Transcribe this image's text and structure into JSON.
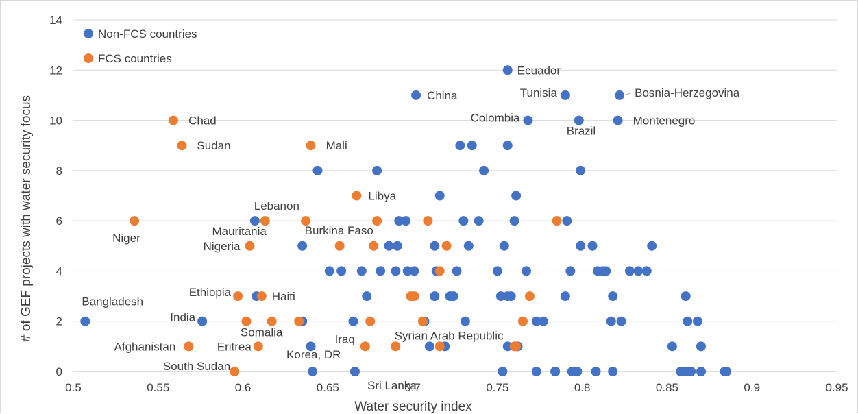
{
  "chart_data": {
    "type": "scatter",
    "xlabel": "Water security index",
    "ylabel": "# of GEF projects with water security focus",
    "xlim": [
      0.5,
      0.95
    ],
    "ylim": [
      0,
      14
    ],
    "x_ticks": [
      "0.5",
      "0.55",
      "0.6",
      "0.65",
      "0.7",
      "0.75",
      "0.8",
      "0.85",
      "0.9",
      "0.95"
    ],
    "y_ticks": [
      "0",
      "2",
      "4",
      "6",
      "8",
      "10",
      "12",
      "14"
    ],
    "grid": "horizontal",
    "legend_position": "top-left",
    "series": [
      {
        "name": "Non-FCS countries",
        "color": "#4472C4",
        "points": [
          [
            0.507,
            2
          ],
          [
            0.576,
            2
          ],
          [
            0.607,
            6
          ],
          [
            0.608,
            3
          ],
          [
            0.635,
            2
          ],
          [
            0.635,
            5
          ],
          [
            0.64,
            1
          ],
          [
            0.641,
            0
          ],
          [
            0.644,
            8
          ],
          [
            0.651,
            4
          ],
          [
            0.658,
            4
          ],
          [
            0.665,
            2
          ],
          [
            0.666,
            0
          ],
          [
            0.67,
            4
          ],
          [
            0.673,
            3
          ],
          [
            0.679,
            8
          ],
          [
            0.681,
            4
          ],
          [
            0.686,
            5
          ],
          [
            0.69,
            4
          ],
          [
            0.691,
            5
          ],
          [
            0.692,
            6
          ],
          [
            0.696,
            6
          ],
          [
            0.697,
            4
          ],
          [
            0.701,
            4
          ],
          [
            0.702,
            11
          ],
          [
            0.707,
            2
          ],
          [
            0.71,
            1
          ],
          [
            0.713,
            5
          ],
          [
            0.713,
            3
          ],
          [
            0.714,
            4
          ],
          [
            0.716,
            7
          ],
          [
            0.719,
            1
          ],
          [
            0.722,
            3
          ],
          [
            0.724,
            3
          ],
          [
            0.726,
            4
          ],
          [
            0.728,
            9
          ],
          [
            0.73,
            6
          ],
          [
            0.731,
            2
          ],
          [
            0.733,
            5
          ],
          [
            0.735,
            9
          ],
          [
            0.739,
            6
          ],
          [
            0.742,
            8
          ],
          [
            0.75,
            4
          ],
          [
            0.752,
            3
          ],
          [
            0.753,
            0
          ],
          [
            0.754,
            5
          ],
          [
            0.756,
            9
          ],
          [
            0.756,
            3
          ],
          [
            0.756,
            12
          ],
          [
            0.756,
            1
          ],
          [
            0.758,
            3
          ],
          [
            0.76,
            6
          ],
          [
            0.761,
            7
          ],
          [
            0.762,
            1
          ],
          [
            0.767,
            4
          ],
          [
            0.768,
            10
          ],
          [
            0.773,
            2
          ],
          [
            0.773,
            0
          ],
          [
            0.777,
            2
          ],
          [
            0.784,
            0
          ],
          [
            0.79,
            3
          ],
          [
            0.79,
            11
          ],
          [
            0.791,
            6
          ],
          [
            0.793,
            4
          ],
          [
            0.794,
            0
          ],
          [
            0.797,
            0
          ],
          [
            0.798,
            10
          ],
          [
            0.799,
            8
          ],
          [
            0.799,
            5
          ],
          [
            0.806,
            5
          ],
          [
            0.808,
            0
          ],
          [
            0.809,
            4
          ],
          [
            0.812,
            4
          ],
          [
            0.814,
            4
          ],
          [
            0.817,
            2
          ],
          [
            0.818,
            0
          ],
          [
            0.818,
            3
          ],
          [
            0.821,
            10
          ],
          [
            0.822,
            11
          ],
          [
            0.823,
            2
          ],
          [
            0.828,
            4
          ],
          [
            0.833,
            4
          ],
          [
            0.838,
            4
          ],
          [
            0.841,
            5
          ],
          [
            0.853,
            1
          ],
          [
            0.858,
            0
          ],
          [
            0.861,
            0
          ],
          [
            0.861,
            3
          ],
          [
            0.862,
            2
          ],
          [
            0.864,
            0
          ],
          [
            0.868,
            2
          ],
          [
            0.87,
            0
          ],
          [
            0.87,
            1
          ],
          [
            0.884,
            0
          ],
          [
            0.885,
            0
          ]
        ]
      },
      {
        "name": "FCS countries",
        "color": "#ED7D31",
        "points": [
          [
            0.536,
            6
          ],
          [
            0.559,
            10
          ],
          [
            0.564,
            9
          ],
          [
            0.568,
            1
          ],
          [
            0.595,
            0
          ],
          [
            0.597,
            3
          ],
          [
            0.602,
            2
          ],
          [
            0.604,
            5
          ],
          [
            0.609,
            1
          ],
          [
            0.611,
            3
          ],
          [
            0.613,
            6
          ],
          [
            0.617,
            2
          ],
          [
            0.633,
            2
          ],
          [
            0.637,
            6
          ],
          [
            0.64,
            9
          ],
          [
            0.657,
            5
          ],
          [
            0.667,
            7
          ],
          [
            0.672,
            1
          ],
          [
            0.675,
            2
          ],
          [
            0.677,
            5
          ],
          [
            0.679,
            6
          ],
          [
            0.69,
            1
          ],
          [
            0.699,
            3
          ],
          [
            0.701,
            3
          ],
          [
            0.706,
            2
          ],
          [
            0.709,
            6
          ],
          [
            0.716,
            1
          ],
          [
            0.716,
            4
          ],
          [
            0.72,
            5
          ],
          [
            0.76,
            1
          ],
          [
            0.761,
            1
          ],
          [
            0.765,
            2
          ],
          [
            0.769,
            3
          ],
          [
            0.785,
            6
          ]
        ]
      }
    ],
    "annotations": [
      {
        "text": "Ecuador",
        "x": 0.756,
        "y": 12
      },
      {
        "text": "China",
        "x": 0.702,
        "y": 11
      },
      {
        "text": "Tunisia",
        "x": 0.79,
        "y": 11
      },
      {
        "text": "Bosnia-Herzegovina",
        "x": 0.822,
        "y": 11
      },
      {
        "text": "Chad",
        "x": 0.559,
        "y": 10
      },
      {
        "text": "Colombia",
        "x": 0.768,
        "y": 10
      },
      {
        "text": "Brazil",
        "x": 0.798,
        "y": 10
      },
      {
        "text": "Montenegro",
        "x": 0.821,
        "y": 10
      },
      {
        "text": "Sudan",
        "x": 0.564,
        "y": 9
      },
      {
        "text": "Mali",
        "x": 0.64,
        "y": 9
      },
      {
        "text": "Libya",
        "x": 0.667,
        "y": 7
      },
      {
        "text": "Lebanon",
        "x": 0.613,
        "y": 6
      },
      {
        "text": "Niger",
        "x": 0.536,
        "y": 6
      },
      {
        "text": "Mauritania",
        "x": 0.604,
        "y": 5
      },
      {
        "text": "Burkina Faso",
        "x": 0.657,
        "y": 5
      },
      {
        "text": "Nigeria",
        "x": 0.604,
        "y": 5
      },
      {
        "text": "Ethiopia",
        "x": 0.597,
        "y": 3
      },
      {
        "text": "Haiti",
        "x": 0.611,
        "y": 3
      },
      {
        "text": "Bangladesh",
        "x": 0.507,
        "y": 2
      },
      {
        "text": "India",
        "x": 0.576,
        "y": 2
      },
      {
        "text": "Somalia",
        "x": 0.617,
        "y": 2
      },
      {
        "text": "Afghanistan",
        "x": 0.568,
        "y": 1
      },
      {
        "text": "Eritrea",
        "x": 0.609,
        "y": 1
      },
      {
        "text": "Iraq",
        "x": 0.672,
        "y": 1
      },
      {
        "text": "Syrian Arab Republic",
        "x": 0.716,
        "y": 1
      },
      {
        "text": "South Sudan",
        "x": 0.595,
        "y": 0
      },
      {
        "text": "Korea, DR",
        "x": 0.641,
        "y": 0
      },
      {
        "text": "Sri Lanka",
        "x": 0.666,
        "y": 0
      }
    ]
  }
}
